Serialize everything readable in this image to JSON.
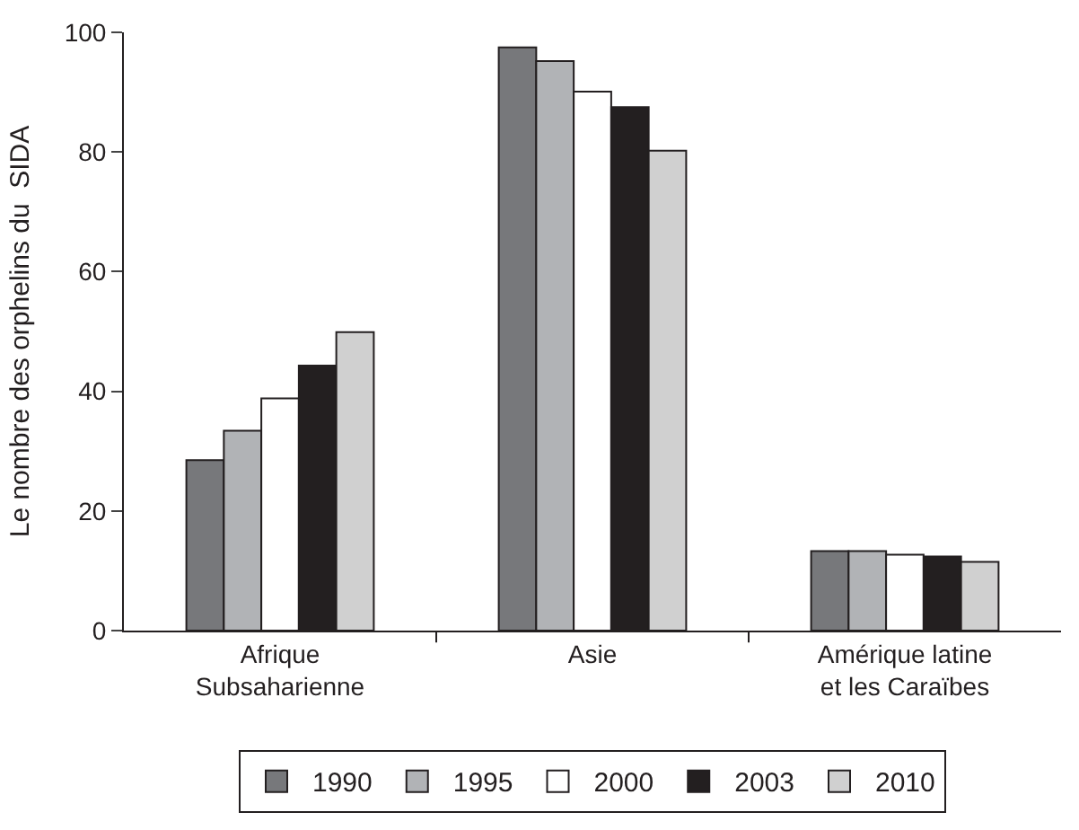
{
  "chart_data": {
    "type": "bar",
    "ylabel": "Le nombre des orphelins du  SIDA",
    "categories": [
      "Afrique\nSubsaharienne",
      "Asie",
      "Amérique latine\net les Caraïbes"
    ],
    "series": [
      {
        "name": "1990",
        "color": "#77787b",
        "values": [
          28.5,
          97.5,
          13.3
        ]
      },
      {
        "name": "1995",
        "color": "#b1b3b6",
        "values": [
          33.4,
          95.2,
          13.3
        ]
      },
      {
        "name": "2000",
        "color": "#ffffff",
        "values": [
          38.8,
          90.1,
          12.7
        ]
      },
      {
        "name": "2003",
        "color": "#231f20",
        "values": [
          44.3,
          87.5,
          12.4
        ]
      },
      {
        "name": "2010",
        "color": "#d0d0d0",
        "values": [
          49.9,
          80.2,
          11.5
        ]
      }
    ],
    "ylim": [
      0,
      100
    ],
    "yticks": [
      0,
      20,
      40,
      60,
      80,
      100
    ],
    "legend": "bottom"
  }
}
